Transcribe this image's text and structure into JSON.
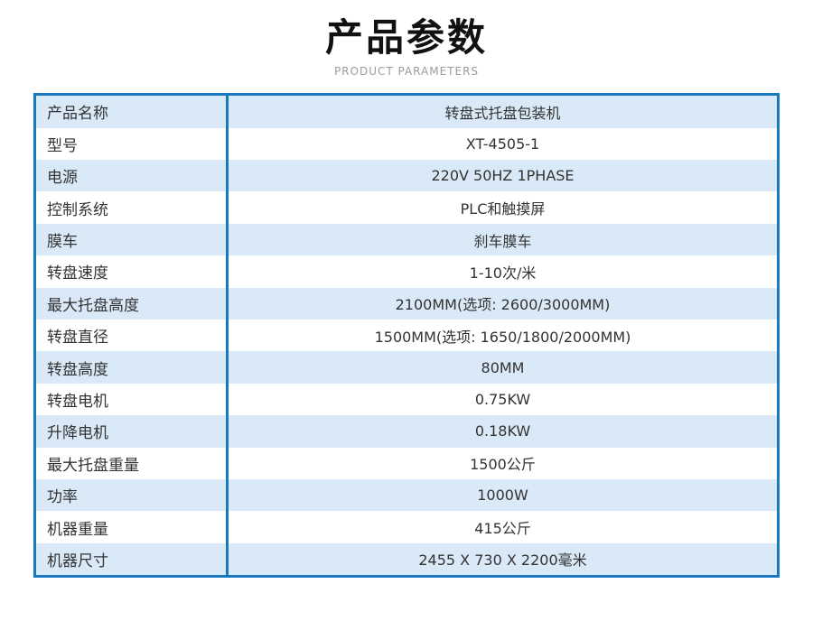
{
  "header": {
    "title": "产品参数",
    "subtitle": "PRODUCT PARAMETERS"
  },
  "colors": {
    "accent_border": "#1879c0",
    "row_alt_background": "#d9e9f8",
    "text": "#333333",
    "subtitle_text": "#9b9b9b"
  },
  "table": {
    "rows": [
      {
        "label": "产品名称",
        "value": "转盘式托盘包装机"
      },
      {
        "label": "型号",
        "value": "XT-4505-1"
      },
      {
        "label": "电源",
        "value": "220V 50HZ 1PHASE"
      },
      {
        "label": "控制系统",
        "value": "PLC和触摸屏"
      },
      {
        "label": "膜车",
        "value": "刹车膜车"
      },
      {
        "label": "转盘速度",
        "value": "1-10次/米"
      },
      {
        "label": "最大托盘高度",
        "value": "2100MM(选项: 2600/3000MM)"
      },
      {
        "label": "转盘直径",
        "value": "1500MM(选项: 1650/1800/2000MM)"
      },
      {
        "label": "转盘高度",
        "value": "80MM"
      },
      {
        "label": "转盘电机",
        "value": "0.75KW"
      },
      {
        "label": "升降电机",
        "value": "0.18KW"
      },
      {
        "label": "最大托盘重量",
        "value": "1500公斤"
      },
      {
        "label": "功率",
        "value": "1000W"
      },
      {
        "label": "机器重量",
        "value": "415公斤"
      },
      {
        "label": "机器尺寸",
        "value": "2455 X 730 X 2200毫米"
      }
    ]
  }
}
